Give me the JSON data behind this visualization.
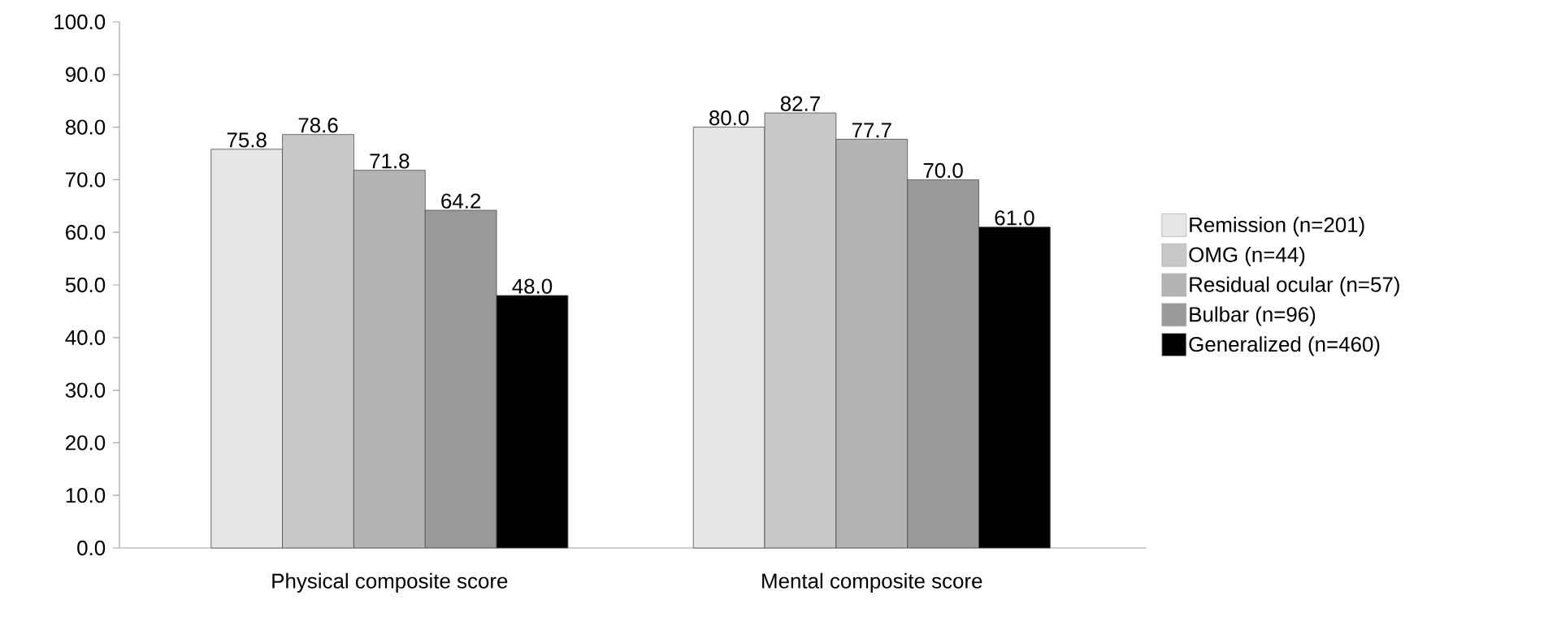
{
  "chart_data": {
    "type": "bar",
    "categories": [
      "Physical composite score",
      "Mental composite score"
    ],
    "series": [
      {
        "name": "Remission (n=201)",
        "color": "#e6e6e6",
        "values": [
          75.8,
          80.0
        ],
        "value_labels": [
          "75.8",
          "80.0"
        ]
      },
      {
        "name": "OMG (n=44)",
        "color": "#c8c8c8",
        "values": [
          78.6,
          82.7
        ],
        "value_labels": [
          "78.6",
          "82.7"
        ]
      },
      {
        "name": "Residual ocular (n=57)",
        "color": "#b4b4b4",
        "values": [
          71.8,
          77.7
        ],
        "value_labels": [
          "71.8",
          "77.7"
        ]
      },
      {
        "name": "Bulbar (n=96)",
        "color": "#999999",
        "values": [
          64.2,
          70.0
        ],
        "value_labels": [
          "64.2",
          "70.0"
        ]
      },
      {
        "name": "Generalized (n=460)",
        "color": "#000000",
        "values": [
          48.0,
          61.0
        ],
        "value_labels": [
          "48.0",
          "61.0"
        ]
      }
    ],
    "ylim": [
      0,
      100
    ],
    "yticks": [
      {
        "value": 0,
        "label": "0.0"
      },
      {
        "value": 10,
        "label": "10.0"
      },
      {
        "value": 20,
        "label": "20.0"
      },
      {
        "value": 30,
        "label": "30.0"
      },
      {
        "value": 40,
        "label": "40.0"
      },
      {
        "value": 50,
        "label": "50.0"
      },
      {
        "value": 60,
        "label": "60.0"
      },
      {
        "value": 70,
        "label": "70.0"
      },
      {
        "value": 80,
        "label": "80.0"
      },
      {
        "value": 90,
        "label": "90.0"
      },
      {
        "value": 100,
        "label": "100.0"
      }
    ],
    "grid": false,
    "legend": "right"
  }
}
